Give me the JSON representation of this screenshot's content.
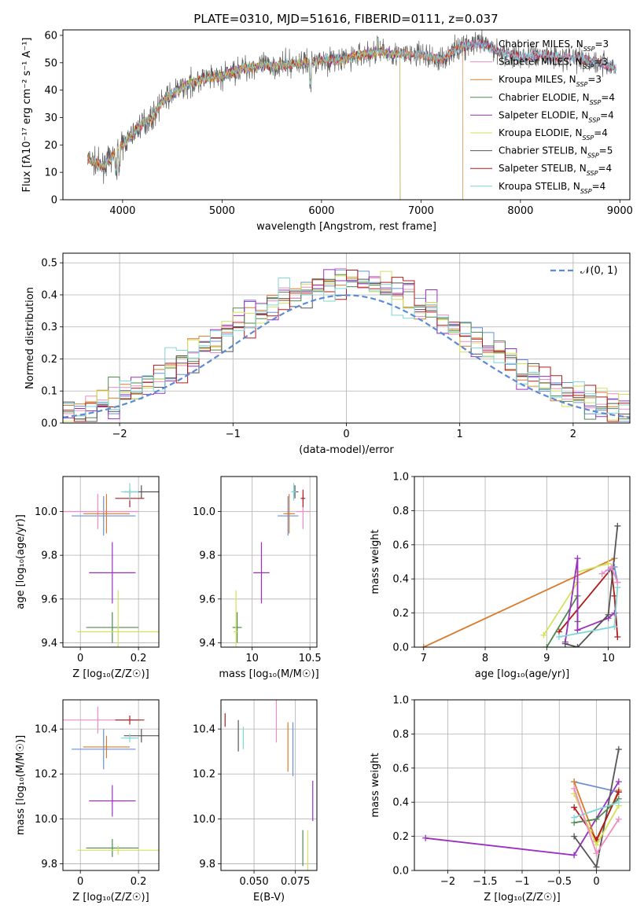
{
  "title": "PLATE=0310, MJD=51616, FIBERID=0111, z=0.037",
  "colors": {
    "Chabrier MILES": "#6b8fd6",
    "Salpeter MILES": "#f08cc0",
    "Kroupa MILES": "#d97b2a",
    "Chabrier ELODIE": "#4f8a4f",
    "Salpeter ELODIE": "#9b30c0",
    "Kroupa ELODIE": "#d4e25a",
    "Chabrier STELIB": "#555555",
    "Salpeter STELIB": "#b01c1c",
    "Kroupa STELIB": "#7fd6d6"
  },
  "chart_data": [
    {
      "id": "spectrum",
      "type": "line",
      "xlabel": "wavelength [Angstrom, rest frame]",
      "ylabel": "Flux [fλ10⁻¹⁷ erg cm⁻² s⁻¹ A⁻¹]",
      "xlim": [
        3400,
        9100
      ],
      "ylim": [
        0,
        62
      ],
      "xticks": [
        4000,
        5000,
        6000,
        7000,
        8000,
        9000
      ],
      "yticks": [
        0,
        10,
        20,
        30,
        40,
        50,
        60
      ],
      "legend_position": "right",
      "legend": [
        {
          "name": "Chabrier MILES",
          "sub": "SSP",
          "n": "3"
        },
        {
          "name": "Salpeter MILES",
          "sub": "SSP",
          "n": "3"
        },
        {
          "name": "Kroupa MILES",
          "sub": "SSP",
          "n": "3"
        },
        {
          "name": "Chabrier ELODIE",
          "sub": "SSP",
          "n": "4"
        },
        {
          "name": "Salpeter ELODIE",
          "sub": "SSP",
          "n": "4"
        },
        {
          "name": "Kroupa ELODIE",
          "sub": "SSP",
          "n": "4"
        },
        {
          "name": "Chabrier STELIB",
          "sub": "SSP",
          "n": "5"
        },
        {
          "name": "Salpeter STELIB",
          "sub": "SSP",
          "n": "4"
        },
        {
          "name": "Kroupa STELIB",
          "sub": "SSP",
          "n": "4"
        }
      ],
      "continuum": [
        [
          3650,
          15
        ],
        [
          3800,
          12
        ],
        [
          3950,
          18
        ],
        [
          4100,
          24
        ],
        [
          4200,
          28
        ],
        [
          4300,
          30
        ],
        [
          4400,
          36
        ],
        [
          4600,
          41
        ],
        [
          4800,
          44
        ],
        [
          5000,
          45
        ],
        [
          5200,
          48
        ],
        [
          5400,
          49
        ],
        [
          5600,
          49
        ],
        [
          5800,
          50
        ],
        [
          6000,
          51
        ],
        [
          6200,
          51
        ],
        [
          6400,
          53
        ],
        [
          6600,
          54
        ],
        [
          6800,
          53
        ],
        [
          7000,
          53
        ],
        [
          7200,
          51
        ],
        [
          7400,
          56
        ],
        [
          7600,
          57
        ],
        [
          7800,
          54
        ],
        [
          8000,
          52
        ],
        [
          8200,
          53
        ],
        [
          8400,
          52
        ],
        [
          8600,
          52
        ],
        [
          8800,
          50
        ],
        [
          8950,
          48
        ]
      ],
      "cutoffs": [
        {
          "model": "Kroupa MILES",
          "end": 7420
        },
        {
          "model": "Kroupa ELODIE",
          "end": 6790
        },
        {
          "model": "Salpeter ELODIE",
          "end": 6790
        },
        {
          "model": "Chabrier ELODIE",
          "end": 6790
        }
      ]
    },
    {
      "id": "residuals",
      "type": "step",
      "xlabel": "(data-model)/error",
      "ylabel": "Normed distribution",
      "xlim": [
        -2.5,
        2.5
      ],
      "ylim": [
        0,
        0.53
      ],
      "xticks": [
        -2,
        -1,
        0,
        1,
        2
      ],
      "yticks": [
        0.0,
        0.1,
        0.2,
        0.3,
        0.4,
        0.5
      ],
      "legend_position": "top-right",
      "reference_label": "𝒩(0, 1)",
      "bin_width": 0.1
    },
    {
      "id": "age_vs_Z",
      "type": "scatter",
      "xlabel": "Z [log₁₀(Z/Z☉)]",
      "ylabel": "age  [log₁₀(age/yr)]",
      "xlim": [
        -0.06,
        0.27
      ],
      "ylim": [
        9.38,
        10.16
      ],
      "xticks": [
        0.0,
        0.2
      ],
      "yticks": [
        9.4,
        9.6,
        9.8,
        10.0
      ],
      "points": [
        {
          "model": "Chabrier MILES",
          "x": 0.08,
          "y": 9.98,
          "xe": 0.11,
          "ye": 0.09
        },
        {
          "model": "Salpeter MILES",
          "x": 0.06,
          "y": 10.0,
          "xe": 0.14,
          "ye": 0.08
        },
        {
          "model": "Kroupa MILES",
          "x": 0.09,
          "y": 9.99,
          "xe": 0.08,
          "ye": 0.09
        },
        {
          "model": "Chabrier ELODIE",
          "x": 0.11,
          "y": 9.47,
          "xe": 0.09,
          "ye": 0.07
        },
        {
          "model": "Salpeter ELODIE",
          "x": 0.11,
          "y": 9.72,
          "xe": 0.08,
          "ye": 0.14
        },
        {
          "model": "Kroupa ELODIE",
          "x": 0.13,
          "y": 9.45,
          "xe": 0.14,
          "ye": 0.19
        },
        {
          "model": "Chabrier STELIB",
          "x": 0.21,
          "y": 10.09,
          "xe": 0.06,
          "ye": 0.03
        },
        {
          "model": "Salpeter STELIB",
          "x": 0.17,
          "y": 10.06,
          "xe": 0.05,
          "ye": 0.04
        },
        {
          "model": "Kroupa STELIB",
          "x": 0.17,
          "y": 10.09,
          "xe": 0.03,
          "ye": 0.04
        }
      ]
    },
    {
      "id": "age_vs_mass",
      "type": "scatter",
      "xlabel": "mass [log₁₀(M/M☉)]",
      "ylabel": "",
      "xlim": [
        9.73,
        10.56
      ],
      "ylim": [
        9.38,
        10.16
      ],
      "xticks": [
        10.0,
        10.5
      ],
      "yticks": [
        9.4,
        9.6,
        9.8,
        10.0
      ],
      "points": [
        {
          "model": "Chabrier MILES",
          "x": 10.31,
          "y": 9.98,
          "xe": 0.09,
          "ye": 0.09
        },
        {
          "model": "Salpeter MILES",
          "x": 10.44,
          "y": 10.0,
          "xe": 0.06,
          "ye": 0.08
        },
        {
          "model": "Kroupa MILES",
          "x": 10.32,
          "y": 9.99,
          "xe": 0.05,
          "ye": 0.09
        },
        {
          "model": "Chabrier ELODIE",
          "x": 9.87,
          "y": 9.47,
          "xe": 0.04,
          "ye": 0.07
        },
        {
          "model": "Salpeter ELODIE",
          "x": 10.08,
          "y": 9.72,
          "xe": 0.07,
          "ye": 0.14
        },
        {
          "model": "Kroupa ELODIE",
          "x": 9.86,
          "y": 9.45,
          "xe": 0.02,
          "ye": 0.19
        },
        {
          "model": "Chabrier STELIB",
          "x": 10.37,
          "y": 10.09,
          "xe": 0.03,
          "ye": 0.03
        },
        {
          "model": "Salpeter STELIB",
          "x": 10.44,
          "y": 10.06,
          "xe": 0.02,
          "ye": 0.04
        },
        {
          "model": "Kroupa STELIB",
          "x": 10.36,
          "y": 10.09,
          "xe": 0.02,
          "ye": 0.04
        }
      ]
    },
    {
      "id": "weight_vs_age",
      "type": "line",
      "xlabel": "age  [log₁₀(age/yr)]",
      "ylabel": "mass weight",
      "xlim": [
        6.85,
        10.35
      ],
      "ylim": [
        0,
        1.0
      ],
      "xticks": [
        7,
        8,
        9,
        10
      ],
      "yticks": [
        0.0,
        0.2,
        0.4,
        0.6,
        0.8,
        1.0
      ],
      "series": [
        {
          "model": "Kroupa MILES",
          "points": [
            [
              7.0,
              0.0
            ],
            [
              10.1,
              0.52
            ]
          ]
        },
        {
          "model": "Kroupa ELODIE",
          "points": [
            [
              8.95,
              0.07
            ],
            [
              9.5,
              0.38
            ],
            [
              9.5,
              0.44
            ],
            [
              10.0,
              0.49
            ]
          ]
        },
        {
          "model": "Salpeter STELIB",
          "points": [
            [
              9.2,
              0.09
            ],
            [
              10.05,
              0.46
            ],
            [
              10.1,
              0.3
            ],
            [
              10.15,
              0.06
            ]
          ]
        },
        {
          "model": "Chabrier ELODIE",
          "points": [
            [
              9.0,
              0.0
            ],
            [
              9.5,
              0.3
            ],
            [
              9.5,
              0.15
            ]
          ]
        },
        {
          "model": "Salpeter ELODIE",
          "points": [
            [
              9.3,
              0.03
            ],
            [
              9.5,
              0.52
            ],
            [
              9.5,
              0.1
            ],
            [
              10.0,
              0.17
            ],
            [
              10.1,
              0.2
            ]
          ]
        },
        {
          "model": "Chabrier STELIB",
          "points": [
            [
              9.3,
              0.02
            ],
            [
              9.5,
              0.0
            ],
            [
              10.0,
              0.19
            ],
            [
              10.15,
              0.71
            ]
          ]
        },
        {
          "model": "Kroupa STELIB",
          "points": [
            [
              9.2,
              0.06
            ],
            [
              10.1,
              0.12
            ],
            [
              10.15,
              0.35
            ]
          ]
        },
        {
          "model": "Chabrier MILES",
          "points": [
            [
              10.0,
              0.45
            ],
            [
              10.1,
              0.47
            ],
            [
              10.15,
              0.38
            ]
          ]
        },
        {
          "model": "Salpeter MILES",
          "points": [
            [
              9.9,
              0.43
            ],
            [
              10.05,
              0.47
            ],
            [
              10.15,
              0.38
            ]
          ]
        }
      ]
    },
    {
      "id": "mass_vs_Z",
      "type": "scatter",
      "xlabel": "Z [log₁₀(Z/Z☉)]",
      "ylabel": "mass [log₁₀(M/M☉)]",
      "xlim": [
        -0.06,
        0.27
      ],
      "ylim": [
        9.77,
        10.53
      ],
      "xticks": [
        0.0,
        0.2
      ],
      "yticks": [
        9.8,
        10.0,
        10.2,
        10.4
      ],
      "points": [
        {
          "model": "Chabrier MILES",
          "x": 0.08,
          "y": 10.31,
          "xe": 0.11,
          "ye": 0.09
        },
        {
          "model": "Salpeter MILES",
          "x": 0.06,
          "y": 10.44,
          "xe": 0.14,
          "ye": 0.06
        },
        {
          "model": "Kroupa MILES",
          "x": 0.09,
          "y": 10.32,
          "xe": 0.08,
          "ye": 0.05
        },
        {
          "model": "Chabrier ELODIE",
          "x": 0.11,
          "y": 9.87,
          "xe": 0.09,
          "ye": 0.04
        },
        {
          "model": "Salpeter ELODIE",
          "x": 0.11,
          "y": 10.08,
          "xe": 0.08,
          "ye": 0.07
        },
        {
          "model": "Kroupa ELODIE",
          "x": 0.13,
          "y": 9.86,
          "xe": 0.14,
          "ye": 0.02
        },
        {
          "model": "Chabrier STELIB",
          "x": 0.21,
          "y": 10.37,
          "xe": 0.06,
          "ye": 0.03
        },
        {
          "model": "Salpeter STELIB",
          "x": 0.17,
          "y": 10.44,
          "xe": 0.05,
          "ye": 0.02
        },
        {
          "model": "Kroupa STELIB",
          "x": 0.17,
          "y": 10.36,
          "xe": 0.03,
          "ye": 0.02
        }
      ]
    },
    {
      "id": "mass_vs_ebv",
      "type": "scatter",
      "xlabel": "E(B-V)",
      "ylabel": "",
      "xlim": [
        0.03,
        0.088
      ],
      "ylim": [
        9.77,
        10.53
      ],
      "xticks": [
        0.05,
        0.075
      ],
      "xtick_labels": [
        "0.050",
        "0.075"
      ],
      "yticks": [
        9.8,
        10.0,
        10.2,
        10.4
      ],
      "points": [
        {
          "model": "Salpeter STELIB",
          "x": 0.0325,
          "y": 10.44,
          "xe": 0,
          "ye": 0.03
        },
        {
          "model": "Chabrier STELIB",
          "x": 0.0405,
          "y": 10.37,
          "xe": 0,
          "ye": 0.07
        },
        {
          "model": "Kroupa STELIB",
          "x": 0.0435,
          "y": 10.36,
          "xe": 0,
          "ye": 0.05
        },
        {
          "model": "Salpeter MILES",
          "x": 0.0635,
          "y": 10.44,
          "xe": 0,
          "ye": 0.1
        },
        {
          "model": "Kroupa MILES",
          "x": 0.0705,
          "y": 10.32,
          "xe": 0,
          "ye": 0.11
        },
        {
          "model": "Chabrier MILES",
          "x": 0.0735,
          "y": 10.31,
          "xe": 0,
          "ye": 0.12
        },
        {
          "model": "Chabrier ELODIE",
          "x": 0.0795,
          "y": 9.87,
          "xe": 0,
          "ye": 0.08
        },
        {
          "model": "Kroupa ELODIE",
          "x": 0.0825,
          "y": 9.86,
          "xe": 0,
          "ye": 0.09
        },
        {
          "model": "Salpeter ELODIE",
          "x": 0.0855,
          "y": 10.08,
          "xe": 0,
          "ye": 0.09
        }
      ]
    },
    {
      "id": "weight_vs_Z",
      "type": "line",
      "xlabel": "Z [log₁₀(Z/Z☉)]",
      "ylabel": "mass weight",
      "xlim": [
        -2.45,
        0.45
      ],
      "ylim": [
        0,
        1.0
      ],
      "xticks": [
        -2.0,
        -1.5,
        -1.0,
        -0.5,
        0.0
      ],
      "yticks": [
        0.0,
        0.2,
        0.4,
        0.6,
        0.8,
        1.0
      ],
      "series": [
        {
          "model": "Salpeter ELODIE",
          "points": [
            [
              -2.3,
              0.19
            ],
            [
              -0.3,
              0.09
            ],
            [
              0.3,
              0.52
            ]
          ]
        },
        {
          "model": "Chabrier MILES",
          "points": [
            [
              -0.3,
              0.52
            ],
            [
              0.3,
              0.46
            ]
          ]
        },
        {
          "model": "Kroupa MILES",
          "points": [
            [
              -0.3,
              0.52
            ],
            [
              0.0,
              0.17
            ],
            [
              0.3,
              0.47
            ]
          ]
        },
        {
          "model": "Chabrier STELIB",
          "points": [
            [
              -0.3,
              0.2
            ],
            [
              0.0,
              0.02
            ],
            [
              0.3,
              0.71
            ]
          ]
        },
        {
          "model": "Salpeter STELIB",
          "points": [
            [
              -0.3,
              0.37
            ],
            [
              0.0,
              0.18
            ],
            [
              0.3,
              0.46
            ]
          ]
        },
        {
          "model": "Chabrier ELODIE",
          "points": [
            [
              -0.3,
              0.28
            ],
            [
              0.0,
              0.3
            ],
            [
              0.3,
              0.42
            ]
          ]
        },
        {
          "model": "Kroupa ELODIE",
          "points": [
            [
              -0.3,
              0.45
            ],
            [
              0.0,
              0.15
            ],
            [
              0.3,
              0.38
            ]
          ]
        },
        {
          "model": "Kroupa STELIB",
          "points": [
            [
              -0.3,
              0.31
            ],
            [
              0.3,
              0.4
            ]
          ]
        },
        {
          "model": "Salpeter MILES",
          "points": [
            [
              -0.3,
              0.48
            ],
            [
              0.0,
              0.1
            ],
            [
              0.3,
              0.3
            ]
          ]
        }
      ]
    }
  ]
}
